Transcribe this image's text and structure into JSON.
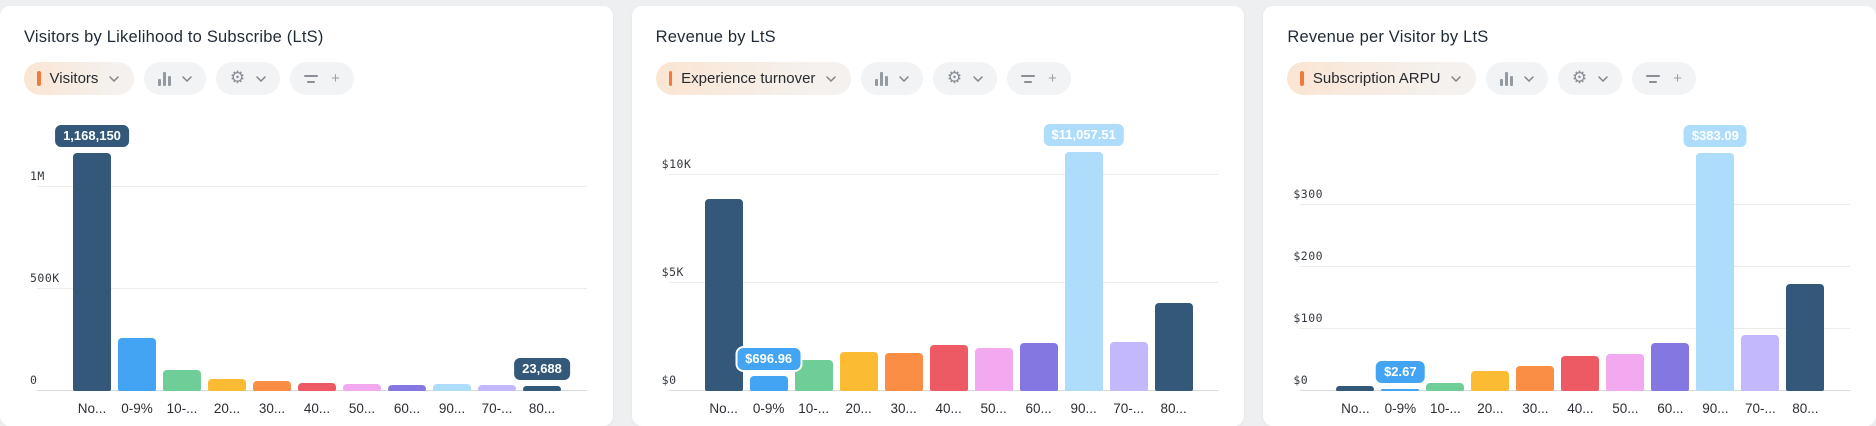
{
  "colors": {
    "page_bg": "#edeff1",
    "card_bg": "#ffffff",
    "accent_orange": "#f2793e",
    "gridline": "#eaecee",
    "baseline": "#d8dbde"
  },
  "icons": {
    "gear": "⚙",
    "plus": "+"
  },
  "panels": [
    {
      "title": "Visitors by Likelihood to Subscribe (LtS)",
      "metric": {
        "label": "Visitors"
      },
      "chart_data": {
        "type": "bar",
        "categories": [
          "No...",
          "0-9%",
          "10-...",
          "20...",
          "30...",
          "40...",
          "50...",
          "60...",
          "90...",
          "70-...",
          "80..."
        ],
        "values": [
          1168150,
          260000,
          103000,
          59000,
          49000,
          39000,
          34000,
          29000,
          34000,
          29000,
          23688
        ],
        "colors": [
          "#33587a",
          "#42a4f2",
          "#6fce97",
          "#fbbb33",
          "#fa8e44",
          "#ee5a64",
          "#f2a9ef",
          "#8577e2",
          "#aedcfb",
          "#c4b8fc",
          "#33587a"
        ],
        "ylim": [
          0,
          1390000
        ],
        "gridlines": [
          {
            "value": 0,
            "label": "0"
          },
          {
            "value": 500000,
            "label": "500K"
          },
          {
            "value": 1000000,
            "label": "1M"
          }
        ],
        "badges": [
          {
            "index": 0,
            "label": "1,168,150"
          },
          {
            "index": 10,
            "label": "23,688"
          }
        ],
        "legend": "none",
        "xlabel": "",
        "ylabel": ""
      }
    },
    {
      "title": "Revenue by LtS",
      "metric": {
        "label": "Experience turnover"
      },
      "chart_data": {
        "type": "bar",
        "categories": [
          "No...",
          "0-9%",
          "10-...",
          "20...",
          "30...",
          "40...",
          "50...",
          "60...",
          "90...",
          "70-...",
          "80..."
        ],
        "values": [
          8900,
          696.96,
          1440,
          1800,
          1760,
          2130,
          1990,
          2220,
          11057.51,
          2270,
          4075
        ],
        "colors": [
          "#33587a",
          "#42a4f2",
          "#6fce97",
          "#fbbb33",
          "#fa8e44",
          "#ee5a64",
          "#f2a9ef",
          "#8577e2",
          "#aedcfb",
          "#c4b8fc",
          "#33587a"
        ],
        "ylim": [
          0,
          13100
        ],
        "gridlines": [
          {
            "value": 0,
            "label": "$0"
          },
          {
            "value": 5000,
            "label": "$5K"
          },
          {
            "value": 10000,
            "label": "$10K"
          }
        ],
        "badges": [
          {
            "index": 1,
            "label": "$696.96"
          },
          {
            "index": 8,
            "label": "$11,057.51"
          }
        ],
        "legend": "none",
        "xlabel": "",
        "ylabel": ""
      }
    },
    {
      "title": "Revenue per Visitor by LtS",
      "metric": {
        "label": "Subscription ARPU"
      },
      "chart_data": {
        "type": "bar",
        "categories": [
          "No...",
          "0-9%",
          "10-...",
          "20...",
          "30...",
          "40...",
          "50...",
          "60...",
          "90...",
          "70-...",
          "80..."
        ],
        "values": [
          8,
          2.67,
          13,
          32,
          40,
          56,
          60,
          77,
          383.09,
          90,
          172
        ],
        "colors": [
          "#33587a",
          "#42a4f2",
          "#6fce97",
          "#fbbb33",
          "#fa8e44",
          "#ee5a64",
          "#f2a9ef",
          "#8577e2",
          "#aedcfb",
          "#c4b8fc",
          "#33587a"
        ],
        "ylim": [
          0,
          456
        ],
        "gridlines": [
          {
            "value": 0,
            "label": "$0"
          },
          {
            "value": 100,
            "label": "$100"
          },
          {
            "value": 200,
            "label": "$200"
          },
          {
            "value": 300,
            "label": "$300"
          }
        ],
        "badges": [
          {
            "index": 1,
            "label": "$2.67"
          },
          {
            "index": 8,
            "label": "$383.09"
          }
        ],
        "legend": "none",
        "xlabel": "",
        "ylabel": ""
      }
    }
  ]
}
